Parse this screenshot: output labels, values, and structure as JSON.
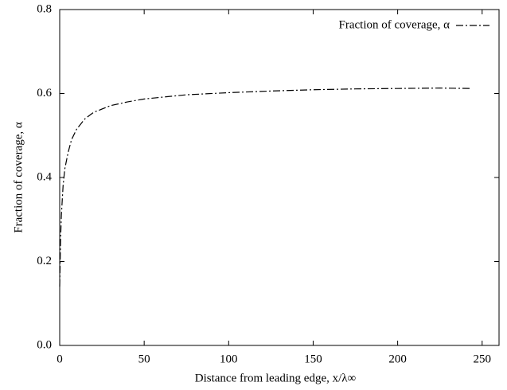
{
  "chart_data": {
    "type": "line",
    "x_label": "Distance from leading edge, x/λ∞",
    "y_label": "Fraction of coverage, α",
    "x": [
      0,
      0.5,
      1,
      2,
      3,
      5,
      7,
      10,
      15,
      20,
      30,
      40,
      50,
      75,
      100,
      125,
      150,
      175,
      200,
      225,
      243
    ],
    "series": [
      {
        "name": "Fraction of coverage, α",
        "color": "#000000",
        "line_style": "dash-dot",
        "values": [
          0.14,
          0.25,
          0.31,
          0.38,
          0.42,
          0.46,
          0.49,
          0.515,
          0.54,
          0.555,
          0.571,
          0.58,
          0.587,
          0.597,
          0.602,
          0.606,
          0.609,
          0.611,
          0.612,
          0.613,
          0.612
        ]
      }
    ],
    "xlim": [
      0,
      260
    ],
    "ylim": [
      0,
      0.8
    ],
    "xticks": [
      0,
      50,
      100,
      150,
      200,
      250
    ],
    "yticks": [
      {
        "value": 0,
        "label": "0.0"
      },
      0.2,
      0.4,
      0.6,
      0.8
    ],
    "legend": "top-right",
    "grid": false
  }
}
